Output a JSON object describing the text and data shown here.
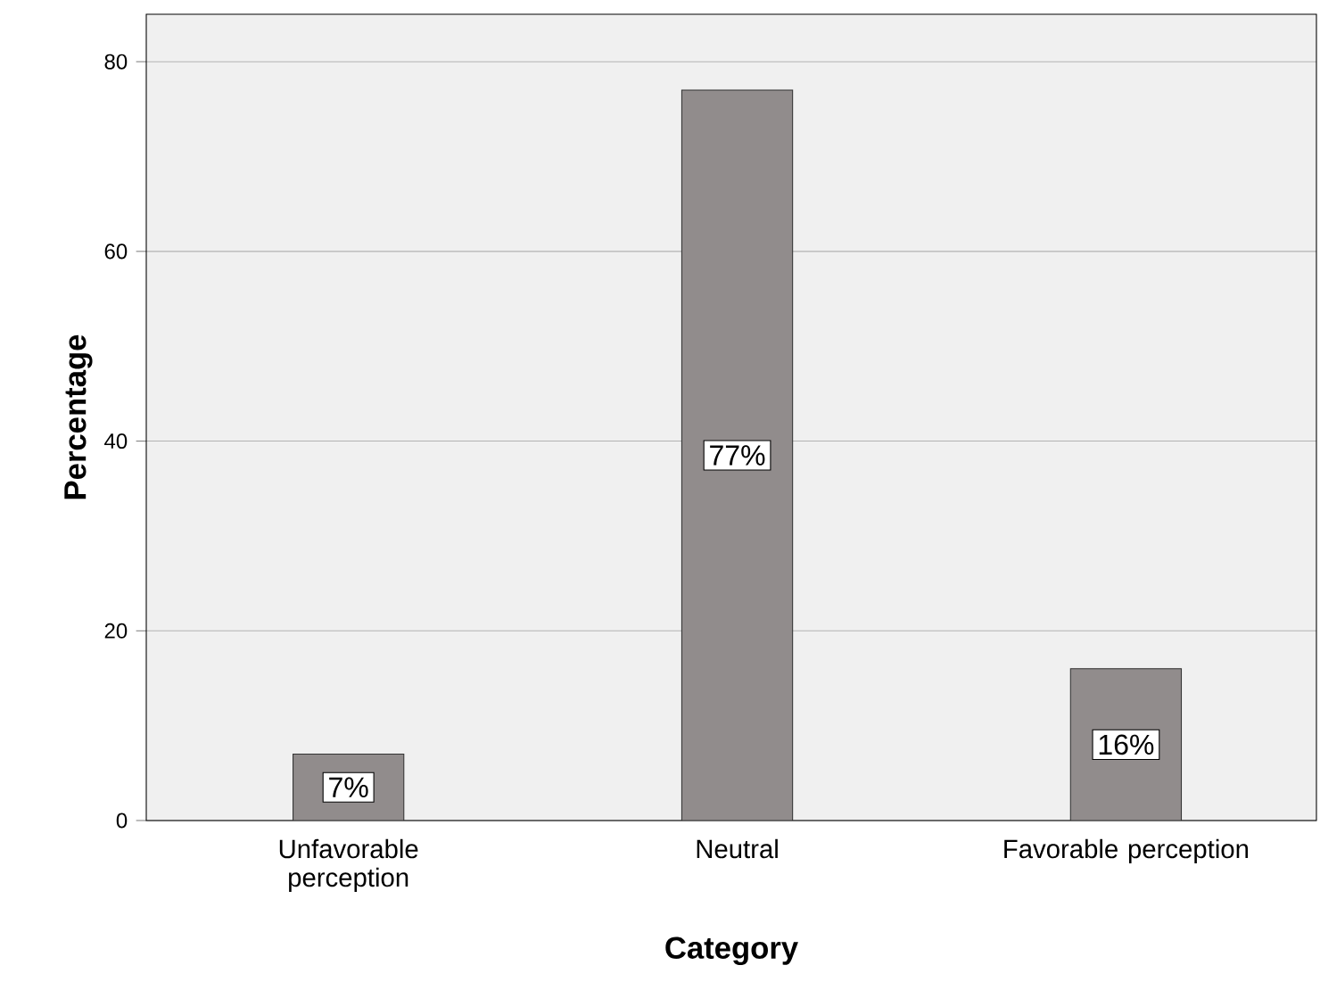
{
  "chart_data": {
    "type": "bar",
    "xlabel": "Category",
    "ylabel": "Percentage",
    "categories": [
      "Unfavorable perception",
      "Neutral",
      "Favorable perception"
    ],
    "values": [
      7,
      77,
      16
    ],
    "value_labels": [
      "7%",
      "77%",
      "16%"
    ],
    "color": "#918c8c",
    "ylim": [
      0,
      85
    ],
    "yticks": [
      0,
      20,
      40,
      60,
      80
    ],
    "grid": "y"
  }
}
